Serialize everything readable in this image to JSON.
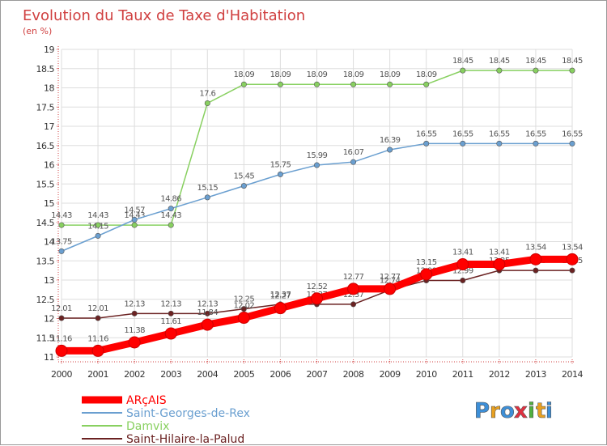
{
  "chart_data": {
    "type": "line",
    "title": "Evolution du Taux de Taxe d'Habitation",
    "unit_label": "(en %)",
    "x": [
      "2000",
      "2001",
      "2002",
      "2003",
      "2004",
      "2005",
      "2006",
      "2007",
      "2008",
      "2009",
      "2010",
      "2011",
      "2012",
      "2013",
      "2014"
    ],
    "ylim": [
      11,
      19
    ],
    "yticks": [
      "11",
      "11.5",
      "12",
      "12.5",
      "13",
      "13.5",
      "14",
      "14.5",
      "15",
      "15.5",
      "16",
      "16.5",
      "17",
      "17.5",
      "18",
      "18.5",
      "19"
    ],
    "grid": true,
    "legend_position": "bottom-left",
    "series": [
      {
        "name": "ARçAIS",
        "color": "#ff0000",
        "values": [
          11.16,
          11.16,
          11.38,
          11.61,
          11.84,
          12.02,
          12.27,
          12.52,
          12.77,
          12.77,
          13.15,
          13.41,
          13.41,
          13.54,
          13.54
        ],
        "labels": [
          "11.16",
          "11.16",
          "11.38",
          "11.61",
          "11.84",
          "12.02",
          "12.27",
          "12.52",
          "12.77",
          "12.77",
          "13.15",
          "13.41",
          "13.41",
          "13.54",
          "13.54"
        ]
      },
      {
        "name": "Saint-Georges-de-Rex",
        "color": "#6a9fd0",
        "values": [
          13.75,
          14.15,
          14.57,
          14.86,
          15.15,
          15.45,
          15.75,
          15.99,
          16.07,
          16.39,
          16.55,
          16.55,
          16.55,
          16.55,
          16.55
        ],
        "labels": [
          "13.75",
          "14.15",
          "14.57",
          "14.86",
          "15.15",
          "15.45",
          "15.75",
          "15.99",
          "16.07",
          "16.39",
          "16.55",
          "16.55",
          "16.55",
          "16.55",
          "16.55"
        ]
      },
      {
        "name": "Damvix",
        "color": "#88d060",
        "values": [
          14.43,
          14.43,
          14.43,
          14.43,
          17.6,
          18.09,
          18.09,
          18.09,
          18.09,
          18.09,
          18.09,
          18.45,
          18.45,
          18.45,
          18.45
        ],
        "labels": [
          "14.43",
          "14.43",
          "14.43",
          "14.43",
          "17.6",
          "18.09",
          "18.09",
          "18.09",
          "18.09",
          "18.09",
          "18.09",
          "18.45",
          "18.45",
          "18.45",
          "18.45"
        ]
      },
      {
        "name": "Saint-Hilaire-la-Palud",
        "color": "#6b2222",
        "values": [
          12.01,
          12.01,
          12.13,
          12.13,
          12.13,
          12.25,
          12.37,
          12.37,
          12.37,
          12.74,
          12.99,
          12.99,
          13.25,
          13.25,
          13.25
        ],
        "labels": [
          "12.01",
          "12.01",
          "12.13",
          "12.13",
          "12.13",
          "12.25",
          "12.37",
          "12.37",
          "12.37",
          "12.74",
          "12.99",
          "12.99",
          "13.25",
          "13.25",
          "13.25"
        ]
      }
    ]
  },
  "brand": {
    "name": "Proxiti",
    "letters": [
      "P",
      "r",
      "o",
      "x",
      "i",
      "t",
      "i"
    ],
    "colors": [
      "#3d8fd8",
      "#e8a020",
      "#3d8fd8",
      "#e03040",
      "#50b040",
      "#e8a020",
      "#3d8fd8"
    ]
  }
}
